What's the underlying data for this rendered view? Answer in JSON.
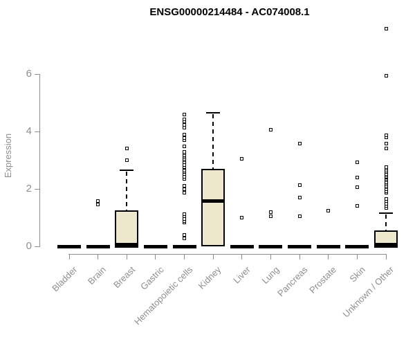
{
  "title": "ENSG00000214484 - AC074008.1",
  "chart_data": {
    "type": "boxplot",
    "title": "ENSG00000214484 - AC074008.1",
    "xlabel": "",
    "ylabel": "Expression",
    "yticks": [
      0,
      2,
      4,
      6
    ],
    "ylim": [
      0,
      6
    ],
    "grid": false,
    "categories": [
      "Bladder",
      "Brain",
      "Breast",
      "Gastric",
      "Hematopoietic cells",
      "Kidney",
      "Liver",
      "Lung",
      "Pancreas",
      "Prostate",
      "Skin",
      "Unknown / Other"
    ],
    "series": [
      {
        "name": "Bladder",
        "q1": 0,
        "median": 0,
        "q3": 0,
        "whisker_low": 0,
        "whisker_high": 0,
        "outliers": []
      },
      {
        "name": "Brain",
        "q1": 0,
        "median": 0,
        "q3": 0,
        "whisker_low": 0,
        "whisker_high": 0,
        "outliers": [
          1.45,
          1.57
        ]
      },
      {
        "name": "Breast",
        "q1": 0,
        "median": 0.06,
        "q3": 1.2,
        "whisker_low": 0,
        "whisker_high": 2.65,
        "outliers": [
          2.99,
          3.42
        ]
      },
      {
        "name": "Gastric",
        "q1": 0,
        "median": 0,
        "q3": 0,
        "whisker_low": 0,
        "whisker_high": 0,
        "outliers": []
      },
      {
        "name": "Hematopoietic cells",
        "q1": 0,
        "median": 0,
        "q3": 0,
        "whisker_low": 0,
        "whisker_high": 0,
        "outliers": [
          0.27,
          0.39,
          0.82,
          0.89,
          0.96,
          1.06,
          1.13,
          1.86,
          1.98,
          2.1,
          2.34,
          2.41,
          2.51,
          2.58,
          2.65,
          2.75,
          2.82,
          2.92,
          2.99,
          3.04,
          3.11,
          3.16,
          3.23,
          3.28,
          3.49,
          3.71,
          3.78,
          3.9,
          4.14,
          4.22,
          4.34,
          4.43,
          4.6
        ]
      },
      {
        "name": "Kidney",
        "q1": 0.05,
        "median": 1.59,
        "q3": 2.65,
        "whisker_low": 0.05,
        "whisker_high": 4.65,
        "outliers": []
      },
      {
        "name": "Liver",
        "q1": 0,
        "median": 0,
        "q3": 0,
        "whisker_low": 0,
        "whisker_high": 0,
        "outliers": [
          0.99,
          3.06
        ]
      },
      {
        "name": "Lung",
        "q1": 0,
        "median": 0,
        "q3": 0,
        "whisker_low": 0,
        "whisker_high": 0,
        "outliers": [
          1.06,
          1.2,
          4.05
        ]
      },
      {
        "name": "Pancreas",
        "q1": 0,
        "median": 0,
        "q3": 0,
        "whisker_low": 0,
        "whisker_high": 0,
        "outliers": [
          1.04,
          1.69,
          2.14,
          3.59
        ]
      },
      {
        "name": "Prostate",
        "q1": 0,
        "median": 0,
        "q3": 0,
        "whisker_low": 0,
        "whisker_high": 0,
        "outliers": [
          1.25
        ]
      },
      {
        "name": "Skin",
        "q1": 0,
        "median": 0,
        "q3": 0,
        "whisker_low": 0,
        "whisker_high": 0,
        "outliers": [
          1.42,
          2.05,
          2.39,
          2.92
        ]
      },
      {
        "name": "Unknown / Other",
        "q1": 0,
        "median": 0.06,
        "q3": 0.51,
        "whisker_low": 0,
        "whisker_high": 1.16,
        "outliers": [
          1.33,
          1.4,
          1.49,
          1.57,
          1.66,
          1.86,
          1.91,
          1.98,
          2.05,
          2.12,
          2.19,
          2.24,
          2.29,
          2.34,
          2.39,
          2.43,
          2.48,
          2.53,
          2.58,
          2.63,
          2.7,
          2.77,
          3.4,
          3.59,
          3.8,
          3.86,
          5.95,
          7.59
        ]
      }
    ],
    "colors": {
      "box_fill": "#EDE8CD",
      "box_border": "#000000",
      "median": "#000000",
      "axis": "#8e8e8e",
      "tick_label": "#8e8e8e",
      "title": "#000000",
      "outlier": "#000000"
    }
  }
}
